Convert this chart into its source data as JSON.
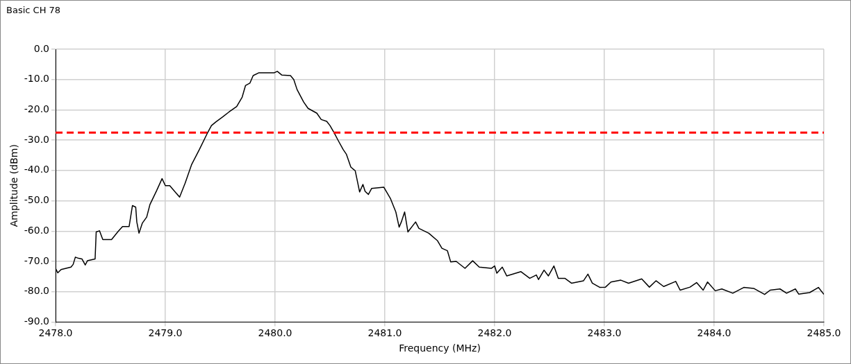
{
  "chart_data": {
    "type": "line",
    "title": "Basic CH 78",
    "xlabel": "Frequency (MHz)",
    "ylabel": "Amplitude (dBm)",
    "xlim": [
      2478,
      2485
    ],
    "ylim": [
      -90,
      0
    ],
    "xticks": [
      {
        "value": 2478,
        "label": "2478.0"
      },
      {
        "value": 2479,
        "label": "2479.0"
      },
      {
        "value": 2480,
        "label": "2480.0"
      },
      {
        "value": 2481,
        "label": "2481.0"
      },
      {
        "value": 2482,
        "label": "2482.0"
      },
      {
        "value": 2483,
        "label": "2483.0"
      },
      {
        "value": 2484,
        "label": "2484.0"
      },
      {
        "value": 2485,
        "label": "2485.0"
      }
    ],
    "yticks": [
      {
        "value": -90,
        "label": "-90.0"
      },
      {
        "value": -80,
        "label": "-80.0"
      },
      {
        "value": -70,
        "label": "-70.0"
      },
      {
        "value": -60,
        "label": "-60.0"
      },
      {
        "value": -50,
        "label": "-50.0"
      },
      {
        "value": -40,
        "label": "-40.0"
      },
      {
        "value": -30,
        "label": "-30.0"
      },
      {
        "value": -20,
        "label": "-20.0"
      },
      {
        "value": -10,
        "label": "-10.0"
      },
      {
        "value": 0,
        "label": "0.0"
      }
    ],
    "grid": true,
    "legend": false,
    "marker": "none",
    "line_style": "solid",
    "ref_lines": [
      {
        "axis": "y",
        "value": -27.5,
        "color": "#ff0000",
        "line_style": "dashed"
      }
    ],
    "series": [
      {
        "color": "#000000",
        "x": [
          2478.0,
          2478.02,
          2478.05,
          2478.14,
          2478.16,
          2478.18,
          2478.21,
          2478.24,
          2478.27,
          2478.29,
          2478.36,
          2478.37,
          2478.4,
          2478.43,
          2478.51,
          2478.57,
          2478.61,
          2478.67,
          2478.7,
          2478.73,
          2478.74,
          2478.76,
          2478.79,
          2478.83,
          2478.86,
          2478.92,
          2478.97,
          2479.0,
          2479.04,
          2479.13,
          2479.18,
          2479.24,
          2479.31,
          2479.38,
          2479.42,
          2479.46,
          2479.52,
          2479.58,
          2479.65,
          2479.7,
          2479.73,
          2479.77,
          2479.8,
          2479.85,
          2479.99,
          2480.02,
          2480.06,
          2480.14,
          2480.17,
          2480.2,
          2480.26,
          2480.3,
          2480.38,
          2480.42,
          2480.47,
          2480.5,
          2480.54,
          2480.57,
          2480.62,
          2480.65,
          2480.69,
          2480.73,
          2480.77,
          2480.8,
          2480.82,
          2480.85,
          2480.88,
          2480.99,
          2481.05,
          2481.1,
          2481.13,
          2481.15,
          2481.18,
          2481.21,
          2481.28,
          2481.31,
          2481.4,
          2481.48,
          2481.52,
          2481.57,
          2481.6,
          2481.65,
          2481.73,
          2481.8,
          2481.86,
          2481.97,
          2482.0,
          2482.02,
          2482.07,
          2482.11,
          2482.24,
          2482.32,
          2482.38,
          2482.4,
          2482.45,
          2482.49,
          2482.54,
          2482.58,
          2482.64,
          2482.7,
          2482.81,
          2482.85,
          2482.89,
          2482.96,
          2483.01,
          2483.06,
          2483.15,
          2483.22,
          2483.34,
          2483.41,
          2483.47,
          2483.54,
          2483.65,
          2483.69,
          2483.78,
          2483.84,
          2483.9,
          2483.94,
          2484.01,
          2484.07,
          2484.17,
          2484.27,
          2484.36,
          2484.46,
          2484.51,
          2484.6,
          2484.66,
          2484.74,
          2484.77,
          2484.87,
          2484.95,
          2485.0
        ],
        "values": [
          -72.3,
          -73.8,
          -72.7,
          -71.9,
          -71.0,
          -68.6,
          -69.0,
          -69.2,
          -71.2,
          -69.8,
          -69.2,
          -60.3,
          -59.9,
          -62.8,
          -62.8,
          -60.1,
          -58.5,
          -58.5,
          -51.6,
          -52.1,
          -57.0,
          -60.7,
          -57.4,
          -55.4,
          -51.2,
          -46.7,
          -42.7,
          -45.0,
          -45.0,
          -48.8,
          -44.2,
          -38.0,
          -33.1,
          -27.9,
          -25.2,
          -24.0,
          -22.4,
          -20.7,
          -18.9,
          -15.8,
          -12.0,
          -11.2,
          -8.7,
          -7.8,
          -7.8,
          -7.3,
          -8.5,
          -8.7,
          -10.0,
          -13.3,
          -17.4,
          -19.5,
          -21.1,
          -23.2,
          -23.8,
          -25.2,
          -27.7,
          -29.8,
          -33.1,
          -34.7,
          -38.9,
          -40.1,
          -47.1,
          -44.6,
          -46.9,
          -47.9,
          -45.9,
          -45.5,
          -49.2,
          -53.7,
          -58.7,
          -57.0,
          -53.7,
          -60.3,
          -57.0,
          -59.1,
          -60.7,
          -63.2,
          -65.7,
          -66.5,
          -70.2,
          -70.0,
          -72.3,
          -69.8,
          -71.9,
          -72.3,
          -71.5,
          -73.9,
          -71.9,
          -74.8,
          -73.4,
          -75.6,
          -74.5,
          -76.0,
          -72.9,
          -74.8,
          -71.5,
          -75.6,
          -75.6,
          -77.2,
          -76.4,
          -74.2,
          -77.2,
          -78.6,
          -78.5,
          -76.8,
          -76.2,
          -77.2,
          -75.8,
          -78.5,
          -76.4,
          -78.3,
          -76.6,
          -79.5,
          -78.5,
          -77.0,
          -79.5,
          -76.8,
          -79.7,
          -79.1,
          -80.5,
          -78.6,
          -78.9,
          -80.9,
          -79.5,
          -79.1,
          -80.5,
          -79.1,
          -80.8,
          -80.3,
          -78.6,
          -80.9
        ]
      }
    ]
  }
}
